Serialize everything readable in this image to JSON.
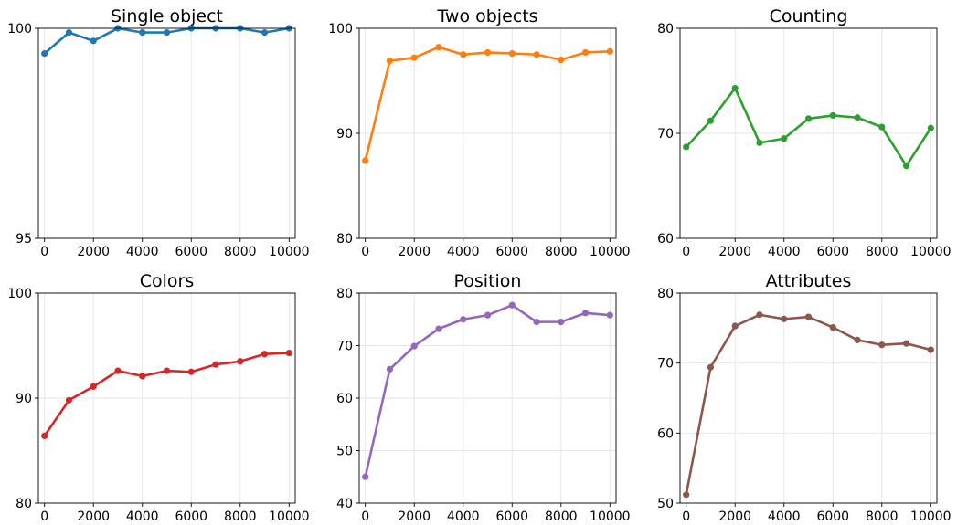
{
  "chart_data": [
    {
      "type": "line",
      "title": "Single object",
      "color": "#1f77b4",
      "x": [
        0,
        1000,
        2000,
        3000,
        4000,
        5000,
        6000,
        7000,
        8000,
        9000,
        10000
      ],
      "values": [
        99.4,
        99.9,
        99.7,
        100,
        99.9,
        99.9,
        100,
        100,
        100,
        99.9,
        100
      ],
      "ylim": [
        95,
        100
      ],
      "yticks": [
        95,
        100
      ],
      "xlim": [
        -250,
        10250
      ],
      "xticks": [
        0,
        2000,
        4000,
        6000,
        8000,
        10000
      ],
      "grid": true
    },
    {
      "type": "line",
      "title": "Two objects",
      "color": "#ff7f0e",
      "x": [
        0,
        1000,
        2000,
        3000,
        4000,
        5000,
        6000,
        7000,
        8000,
        9000,
        10000
      ],
      "values": [
        87.4,
        96.9,
        97.2,
        98.2,
        97.5,
        97.7,
        97.6,
        97.5,
        97.0,
        97.7,
        97.8
      ],
      "ylim": [
        80,
        100
      ],
      "yticks": [
        80,
        90,
        100
      ],
      "xlim": [
        -250,
        10250
      ],
      "xticks": [
        0,
        2000,
        4000,
        6000,
        8000,
        10000
      ],
      "grid": true
    },
    {
      "type": "line",
      "title": "Counting",
      "color": "#2ca02c",
      "x": [
        0,
        1000,
        2000,
        3000,
        4000,
        5000,
        6000,
        7000,
        8000,
        9000,
        10000
      ],
      "values": [
        68.7,
        71.2,
        74.3,
        69.1,
        69.5,
        71.4,
        71.7,
        71.5,
        70.6,
        66.9,
        70.5
      ],
      "ylim": [
        60,
        80
      ],
      "yticks": [
        60,
        70,
        80
      ],
      "xlim": [
        -250,
        10250
      ],
      "xticks": [
        0,
        2000,
        4000,
        6000,
        8000,
        10000
      ],
      "grid": true
    },
    {
      "type": "line",
      "title": "Colors",
      "color": "#d62728",
      "x": [
        0,
        1000,
        2000,
        3000,
        4000,
        5000,
        6000,
        7000,
        8000,
        9000,
        10000
      ],
      "values": [
        86.4,
        89.8,
        91.1,
        92.6,
        92.1,
        92.6,
        92.5,
        93.2,
        93.5,
        94.2,
        94.3
      ],
      "ylim": [
        80,
        100
      ],
      "yticks": [
        80,
        90,
        100
      ],
      "xlim": [
        -250,
        10250
      ],
      "xticks": [
        0,
        2000,
        4000,
        6000,
        8000,
        10000
      ],
      "grid": true
    },
    {
      "type": "line",
      "title": "Position",
      "color": "#9467bd",
      "x": [
        0,
        1000,
        2000,
        3000,
        4000,
        5000,
        6000,
        7000,
        8000,
        9000,
        10000
      ],
      "values": [
        45.0,
        65.5,
        69.9,
        73.2,
        75.0,
        75.8,
        77.7,
        74.5,
        74.5,
        76.2,
        75.8
      ],
      "ylim": [
        40,
        80
      ],
      "yticks": [
        40,
        50,
        60,
        70,
        80
      ],
      "xlim": [
        -250,
        10250
      ],
      "xticks": [
        0,
        2000,
        4000,
        6000,
        8000,
        10000
      ],
      "grid": true
    },
    {
      "type": "line",
      "title": "Attributes",
      "color": "#8c564b",
      "x": [
        0,
        1000,
        2000,
        3000,
        4000,
        5000,
        6000,
        7000,
        8000,
        9000,
        10000
      ],
      "values": [
        51.2,
        69.4,
        75.3,
        76.9,
        76.3,
        76.6,
        75.1,
        73.3,
        72.6,
        72.8,
        71.9
      ],
      "ylim": [
        50,
        80
      ],
      "yticks": [
        50,
        60,
        70,
        80
      ],
      "xlim": [
        -250,
        10250
      ],
      "xticks": [
        0,
        2000,
        4000,
        6000,
        8000,
        10000
      ],
      "grid": true
    }
  ]
}
